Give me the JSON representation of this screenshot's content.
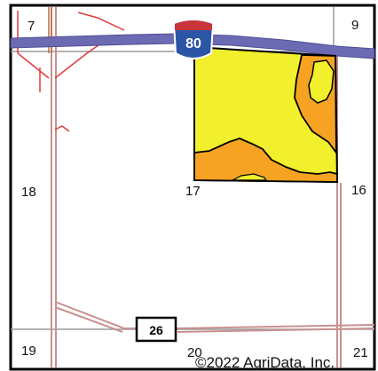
{
  "map": {
    "sections": {
      "nw": "7",
      "ne": "9",
      "w_mid": "18",
      "center": "17",
      "e_mid": "16",
      "sw": "19",
      "s_mid": "20",
      "se": "21"
    },
    "interstate": {
      "number": "80",
      "road_color": "#6a6bb3",
      "shield_blue": "#2c55a6",
      "shield_red": "#c8343a"
    },
    "state_route": {
      "number": "26"
    },
    "field_colors": {
      "primary_soil": "#f2ef2c",
      "secondary_soil": "#f6a323",
      "boundary": "#000000"
    },
    "road_colors": {
      "local_road": "#c9908f",
      "red_road": "#e23b3b",
      "section_line": "#9a9a9a",
      "creek": "#b86f45"
    },
    "copyright": "©2022 AgriData, Inc."
  }
}
